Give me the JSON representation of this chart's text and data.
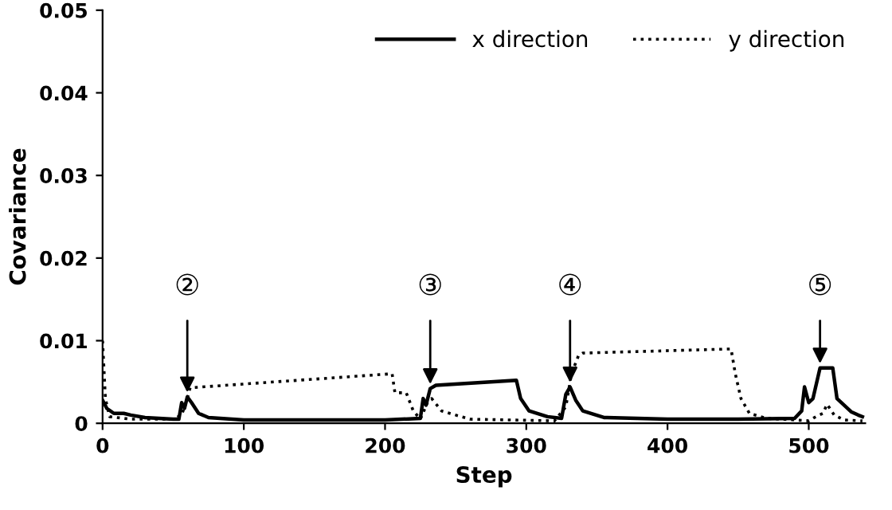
{
  "chart_data": {
    "type": "line",
    "xlabel": "Step",
    "ylabel": "Covariance",
    "xlim": [
      0,
      540
    ],
    "xticks": [
      0,
      100,
      200,
      300,
      400,
      500
    ],
    "ylim": [
      0,
      0.05
    ],
    "yticks": [
      0,
      0.01,
      0.02,
      0.03,
      0.04,
      0.05
    ],
    "legend": "top right",
    "grid": false,
    "series": [
      {
        "name": "x direction",
        "color": "#000000",
        "line_style": "solid",
        "x": [
          0,
          3,
          8,
          15,
          20,
          30,
          50,
          54,
          56,
          58,
          60,
          63,
          68,
          75,
          100,
          150,
          200,
          225,
          227,
          229,
          232,
          236,
          293,
          296,
          302,
          315,
          325,
          328,
          331,
          335,
          340,
          355,
          400,
          450,
          490,
          495,
          497,
          500,
          503,
          508,
          517,
          520,
          525,
          530,
          535,
          538
        ],
        "values": [
          0.0028,
          0.0018,
          0.0012,
          0.0012,
          0.001,
          0.0007,
          0.0005,
          0.0005,
          0.0025,
          0.0018,
          0.0032,
          0.0025,
          0.0012,
          0.0007,
          0.0004,
          0.0004,
          0.0004,
          0.0006,
          0.003,
          0.0022,
          0.0042,
          0.0046,
          0.0052,
          0.003,
          0.0015,
          0.0008,
          0.0006,
          0.0035,
          0.0044,
          0.0028,
          0.0015,
          0.0007,
          0.0005,
          0.0005,
          0.0006,
          0.0015,
          0.0044,
          0.0025,
          0.003,
          0.0067,
          0.0067,
          0.003,
          0.0022,
          0.0014,
          0.001,
          0.0008
        ]
      },
      {
        "name": "y direction",
        "color": "#000000",
        "line_style": "dotted",
        "x": [
          0,
          2,
          5,
          20,
          50,
          56,
          60,
          62,
          205,
          207,
          215,
          220,
          225,
          230,
          233,
          240,
          260,
          320,
          328,
          332,
          337,
          340,
          445,
          448,
          452,
          458,
          470,
          500,
          505,
          510,
          513,
          518,
          525,
          538
        ],
        "values": [
          0.01,
          0.003,
          0.0008,
          0.0005,
          0.0005,
          0.001,
          0.003,
          0.0043,
          0.006,
          0.0037,
          0.0037,
          0.0015,
          0.0005,
          0.0025,
          0.003,
          0.0015,
          0.0005,
          0.0003,
          0.002,
          0.006,
          0.0082,
          0.0085,
          0.009,
          0.006,
          0.003,
          0.0012,
          0.0006,
          0.0003,
          0.0008,
          0.0012,
          0.0023,
          0.001,
          0.0004,
          0.0003
        ]
      }
    ],
    "annotations": [
      {
        "text": "②",
        "x": 60,
        "y": 0.0032
      },
      {
        "text": "③",
        "x": 232,
        "y": 0.0042
      },
      {
        "text": "④",
        "x": 331,
        "y": 0.0044
      },
      {
        "text": "⑤",
        "x": 508,
        "y": 0.0067
      }
    ]
  }
}
